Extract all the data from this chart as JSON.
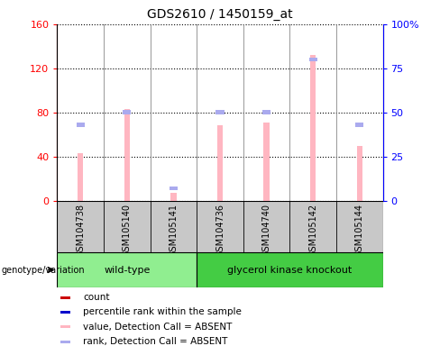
{
  "title": "GDS2610 / 1450159_at",
  "samples": [
    "GSM104738",
    "GSM105140",
    "GSM105141",
    "GSM104736",
    "GSM104740",
    "GSM105142",
    "GSM105144"
  ],
  "wild_type_indices": [
    0,
    1,
    2
  ],
  "knockout_indices": [
    3,
    4,
    5,
    6
  ],
  "bar_color_pink": "#ffb6c1",
  "bar_color_blue_seg": "#aaaaee",
  "value_absent": [
    43,
    83,
    7,
    68,
    71,
    132,
    50
  ],
  "rank_absent": [
    43,
    50,
    7,
    50,
    50,
    80,
    43
  ],
  "ylim_left": [
    0,
    160
  ],
  "ylim_right": [
    0,
    100
  ],
  "yticks_left": [
    0,
    40,
    80,
    120,
    160
  ],
  "ytick_labels_left": [
    "0",
    "40",
    "80",
    "120",
    "160"
  ],
  "yticks_right": [
    0,
    25,
    50,
    75,
    100
  ],
  "ytick_labels_right": [
    "0",
    "25",
    "50",
    "75",
    "100%"
  ],
  "legend_items": [
    {
      "label": "count",
      "color": "#cc0000"
    },
    {
      "label": "percentile rank within the sample",
      "color": "#0000cc"
    },
    {
      "label": "value, Detection Call = ABSENT",
      "color": "#ffb6c1"
    },
    {
      "label": "rank, Detection Call = ABSENT",
      "color": "#aaaaee"
    }
  ],
  "wildtype_color": "#90ee90",
  "knockout_color": "#44cc44",
  "gray_bg": "#c8c8c8",
  "bar_width": 0.12
}
